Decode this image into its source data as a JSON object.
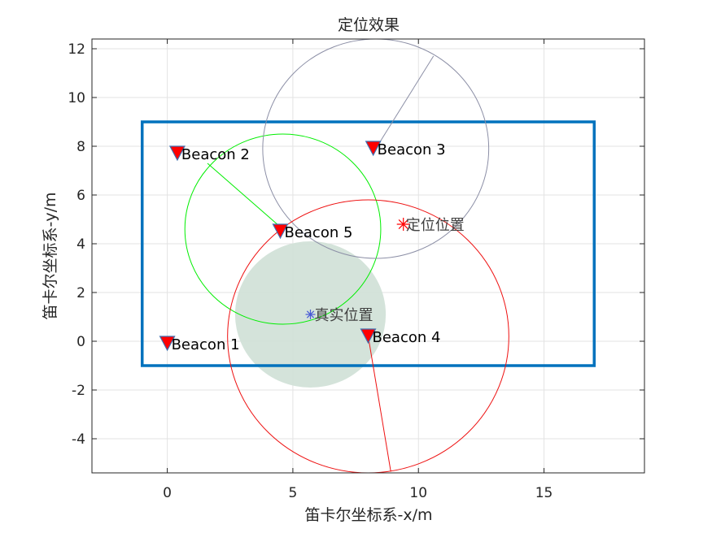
{
  "chart_data": {
    "type": "scatter",
    "title": "定位效果",
    "xlabel": "笛卡尔坐标系-x/m",
    "ylabel": "笛卡尔坐标系-y/m",
    "xlim": [
      -3,
      19
    ],
    "ylim": [
      -5.4,
      12.4
    ],
    "xticks": [
      0,
      5,
      10,
      15
    ],
    "yticks": [
      -4,
      -2,
      0,
      2,
      4,
      6,
      8,
      10,
      12
    ],
    "grid": true,
    "boundary": {
      "x": [
        -1,
        17
      ],
      "y": [
        -1,
        9
      ],
      "color": "#0072BD"
    },
    "beacons": [
      {
        "name": "Beacon 1",
        "x": 0.0,
        "y": -0.1
      },
      {
        "name": "Beacon 2",
        "x": 0.4,
        "y": 7.7
      },
      {
        "name": "Beacon 3",
        "x": 8.2,
        "y": 7.9
      },
      {
        "name": "Beacon 4",
        "x": 8.0,
        "y": 0.2
      },
      {
        "name": "Beacon 5",
        "x": 4.5,
        "y": 4.5
      }
    ],
    "range_circles": [
      {
        "cx": 4.6,
        "cy": 4.6,
        "r": 3.9,
        "color": "#00ee00",
        "spoke_to": [
          1.6,
          7.3
        ]
      },
      {
        "cx": 8.3,
        "cy": 7.9,
        "r": 4.5,
        "color": "#8c8fa6",
        "spoke_to": [
          10.6,
          11.7
        ]
      },
      {
        "cx": 8.0,
        "cy": 0.2,
        "r": 5.6,
        "color": "#ee1111",
        "spoke_to": [
          8.9,
          -5.35
        ]
      }
    ],
    "uncertainty_region": {
      "cx": 5.7,
      "cy": 1.1,
      "r": 3.0,
      "color": "#cfe0d6"
    },
    "estimated_position": {
      "label": "定位位置",
      "x": 9.4,
      "y": 4.8,
      "color": "#ff0000"
    },
    "true_position": {
      "label": "真实位置",
      "x": 5.7,
      "y": 1.1,
      "color": "#4a5bd6"
    }
  }
}
